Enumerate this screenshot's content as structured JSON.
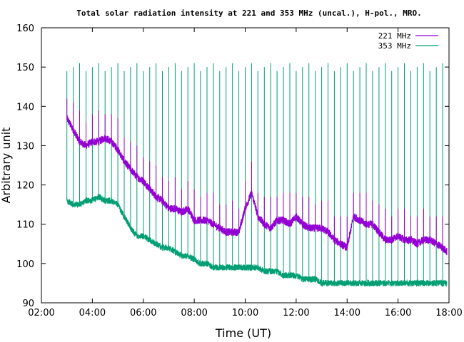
{
  "chart_data": {
    "type": "line",
    "title": "Total solar radiation intensity at 221 and 353 MHz (uncal.), H-pol., MRO.",
    "xlabel": "Time (UT)",
    "ylabel": "Arbitrary unit",
    "xlim": [
      "02:00",
      "18:00"
    ],
    "ylim": [
      90,
      160
    ],
    "x_ticks": [
      "02:00",
      "04:00",
      "06:00",
      "08:00",
      "10:00",
      "12:00",
      "14:00",
      "16:00",
      "18:00"
    ],
    "y_ticks": [
      90,
      100,
      110,
      120,
      130,
      140,
      150,
      160
    ],
    "grid": false,
    "legend_position": "top-right",
    "series": [
      {
        "name": "221 MHz",
        "color": "#9400d3",
        "x": [
          "03:00",
          "03:15",
          "03:30",
          "03:45",
          "04:00",
          "04:15",
          "04:30",
          "04:45",
          "05:00",
          "05:15",
          "05:30",
          "05:45",
          "06:00",
          "06:15",
          "06:30",
          "06:45",
          "07:00",
          "07:15",
          "07:30",
          "07:45",
          "08:00",
          "08:15",
          "08:30",
          "08:45",
          "09:00",
          "09:15",
          "09:30",
          "09:45",
          "10:00",
          "10:15",
          "10:30",
          "10:45",
          "11:00",
          "11:15",
          "11:30",
          "11:45",
          "12:00",
          "12:15",
          "12:30",
          "12:45",
          "13:00",
          "13:15",
          "13:30",
          "13:45",
          "14:00",
          "14:15",
          "14:30",
          "14:45",
          "15:00",
          "15:15",
          "15:30",
          "15:45",
          "16:00",
          "16:15",
          "16:30",
          "16:45",
          "17:00",
          "17:15",
          "17:30",
          "17:45",
          "17:55"
        ],
        "y": [
          137,
          134,
          131,
          130,
          131,
          131,
          132,
          131,
          129,
          126,
          124,
          122,
          121,
          119,
          117,
          116,
          114,
          114,
          113,
          114,
          111,
          111,
          111,
          110,
          109,
          108,
          108,
          108,
          114,
          118,
          112,
          110,
          109,
          111,
          111,
          110,
          112,
          110,
          109,
          109,
          109,
          108,
          106,
          105,
          104,
          112,
          111,
          110,
          110,
          108,
          106,
          106,
          107,
          106,
          106,
          105,
          106,
          106,
          105,
          104,
          103
        ]
      },
      {
        "name": "353 MHz",
        "color": "#009e73",
        "x": [
          "03:00",
          "03:15",
          "03:30",
          "03:45",
          "04:00",
          "04:15",
          "04:30",
          "04:45",
          "05:00",
          "05:15",
          "05:30",
          "05:45",
          "06:00",
          "06:15",
          "06:30",
          "06:45",
          "07:00",
          "07:15",
          "07:30",
          "07:45",
          "08:00",
          "08:15",
          "08:30",
          "08:45",
          "09:00",
          "09:15",
          "09:30",
          "09:45",
          "10:00",
          "10:15",
          "10:30",
          "10:45",
          "11:00",
          "11:15",
          "11:30",
          "11:45",
          "12:00",
          "12:15",
          "12:30",
          "12:45",
          "13:00",
          "13:15",
          "13:30",
          "13:45",
          "14:00",
          "14:15",
          "14:30",
          "14:45",
          "15:00",
          "15:15",
          "15:30",
          "15:45",
          "16:00",
          "16:15",
          "16:30",
          "16:45",
          "17:00",
          "17:15",
          "17:30",
          "17:45",
          "17:55"
        ],
        "y": [
          116,
          115,
          115,
          116,
          116,
          117,
          116,
          116,
          115,
          112,
          109,
          107,
          107,
          106,
          105,
          104,
          104,
          103,
          102,
          102,
          101,
          100,
          100,
          99,
          99,
          99,
          99,
          99,
          99,
          99,
          99,
          98,
          98,
          98,
          97,
          97,
          97,
          96,
          96,
          96,
          95,
          95,
          95,
          95,
          95,
          95,
          95,
          95,
          95,
          95,
          95,
          95,
          95,
          95,
          95,
          95,
          95,
          95,
          95,
          95,
          95
        ]
      }
    ]
  }
}
